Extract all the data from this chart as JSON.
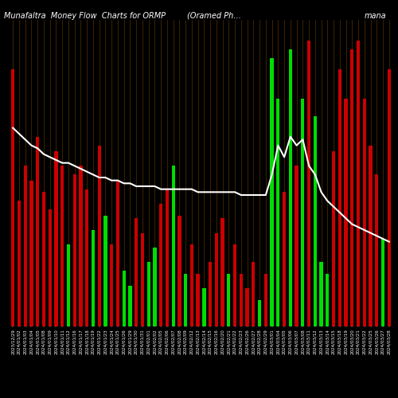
{
  "title_left": "Munafaltra  Money Flow  Charts for ORMP",
  "title_mid": "(Oramed Ph…",
  "title_right": "mana",
  "background_color": "#000000",
  "separator_color": "#3a2000",
  "bar_positive_color": "#00dd00",
  "bar_negative_color": "#cc0000",
  "line_color": "#ffffff",
  "dates": [
    "2023/12/29",
    "2024/01/02",
    "2024/01/03",
    "2024/01/04",
    "2024/01/05",
    "2024/01/08",
    "2024/01/09",
    "2024/01/10",
    "2024/01/11",
    "2024/01/12",
    "2024/01/16",
    "2024/01/17",
    "2024/01/18",
    "2024/01/19",
    "2024/01/22",
    "2024/01/23",
    "2024/01/24",
    "2024/01/25",
    "2024/01/26",
    "2024/01/29",
    "2024/01/30",
    "2024/01/31",
    "2024/02/01",
    "2024/02/02",
    "2024/02/05",
    "2024/02/06",
    "2024/02/07",
    "2024/02/08",
    "2024/02/09",
    "2024/02/12",
    "2024/02/13",
    "2024/02/14",
    "2024/02/15",
    "2024/02/16",
    "2024/02/20",
    "2024/02/21",
    "2024/02/22",
    "2024/02/23",
    "2024/02/26",
    "2024/02/27",
    "2024/02/28",
    "2024/02/29",
    "2024/03/01",
    "2024/03/04",
    "2024/03/05",
    "2024/03/06",
    "2024/03/07",
    "2024/03/08",
    "2024/03/11",
    "2024/03/12",
    "2024/03/13",
    "2024/03/14",
    "2024/03/15",
    "2024/03/18",
    "2024/03/19",
    "2024/03/20",
    "2024/03/21",
    "2024/03/22",
    "2024/03/25",
    "2024/03/26",
    "2024/03/27",
    "2024/03/28"
  ],
  "bar_heights": [
    0.88,
    0.43,
    0.55,
    0.5,
    0.65,
    0.46,
    0.4,
    0.6,
    0.55,
    0.28,
    0.52,
    0.55,
    0.47,
    0.33,
    0.62,
    0.38,
    0.28,
    0.5,
    0.19,
    0.14,
    0.37,
    0.32,
    0.22,
    0.27,
    0.42,
    0.47,
    0.55,
    0.38,
    0.18,
    0.28,
    0.18,
    0.13,
    0.22,
    0.32,
    0.37,
    0.18,
    0.28,
    0.18,
    0.13,
    0.22,
    0.09,
    0.18,
    0.92,
    0.78,
    0.46,
    0.95,
    0.55,
    0.78,
    0.98,
    0.72,
    0.22,
    0.18,
    0.6,
    0.88,
    0.78,
    0.95,
    0.98,
    0.78,
    0.62,
    0.52,
    0.3,
    0.88
  ],
  "bar_colors": [
    "R",
    "R",
    "R",
    "R",
    "R",
    "R",
    "R",
    "R",
    "R",
    "G",
    "R",
    "R",
    "R",
    "G",
    "R",
    "G",
    "R",
    "R",
    "G",
    "G",
    "R",
    "R",
    "G",
    "G",
    "R",
    "R",
    "G",
    "R",
    "G",
    "R",
    "R",
    "G",
    "R",
    "R",
    "R",
    "G",
    "R",
    "R",
    "R",
    "R",
    "G",
    "R",
    "G",
    "G",
    "R",
    "G",
    "R",
    "G",
    "R",
    "G",
    "G",
    "G",
    "R",
    "R",
    "R",
    "R",
    "R",
    "R",
    "R",
    "R",
    "G",
    "R"
  ],
  "line_values": [
    0.68,
    0.66,
    0.64,
    0.62,
    0.61,
    0.59,
    0.58,
    0.57,
    0.56,
    0.56,
    0.55,
    0.54,
    0.53,
    0.52,
    0.51,
    0.51,
    0.5,
    0.5,
    0.49,
    0.49,
    0.48,
    0.48,
    0.48,
    0.48,
    0.47,
    0.47,
    0.47,
    0.47,
    0.47,
    0.47,
    0.46,
    0.46,
    0.46,
    0.46,
    0.46,
    0.46,
    0.46,
    0.45,
    0.45,
    0.45,
    0.45,
    0.45,
    0.52,
    0.62,
    0.58,
    0.65,
    0.62,
    0.64,
    0.55,
    0.52,
    0.46,
    0.43,
    0.41,
    0.39,
    0.37,
    0.35,
    0.34,
    0.33,
    0.32,
    0.31,
    0.3,
    0.29
  ],
  "ylim": [
    0.0,
    1.05
  ],
  "title_fontsize": 7,
  "tick_fontsize": 4.0
}
